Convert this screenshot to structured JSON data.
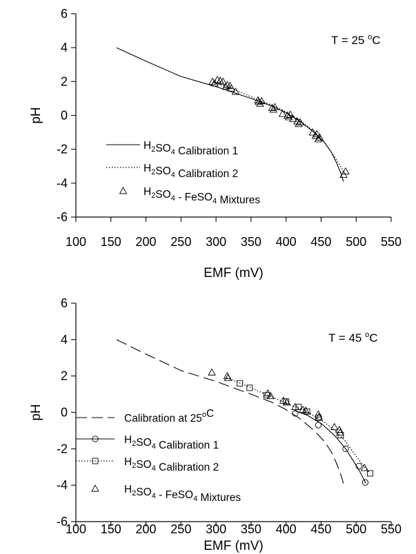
{
  "chart_data": [
    {
      "type": "line",
      "panel": "top",
      "annotation": "T = 25 °C",
      "annotation_parts": {
        "prefix": "T = 25 ",
        "sup": "o",
        "suffix": "C"
      },
      "xlabel": "EMF (mV)",
      "ylabel": "pH",
      "xlim": [
        100,
        550
      ],
      "ylim": [
        -6,
        6
      ],
      "x_ticks": [
        "100",
        "150",
        "200",
        "250",
        "300",
        "350",
        "400",
        "450",
        "500",
        "550"
      ],
      "y_ticks": [
        "-6",
        "-4",
        "-2",
        "0",
        "2",
        "4",
        "6"
      ],
      "grid": false,
      "legend_position": "center-left",
      "series": [
        {
          "name": "H2SO4 Calibration 1",
          "label_parts": [
            {
              "t": "H"
            },
            {
              "t": "2",
              "sub": true
            },
            {
              "t": "SO"
            },
            {
              "t": "4",
              "sub": true
            },
            {
              "t": " Calibration 1"
            }
          ],
          "style": "solid",
          "marker": "none",
          "x": [
            158,
            200,
            250,
            300,
            350,
            380,
            400,
            420,
            440,
            455,
            465,
            472,
            478,
            482
          ],
          "y": [
            4.0,
            3.2,
            2.3,
            1.7,
            1.0,
            0.55,
            0.15,
            -0.35,
            -1.0,
            -1.6,
            -2.2,
            -2.8,
            -3.4,
            -3.9
          ]
        },
        {
          "name": "H2SO4 Calibration 2",
          "label_parts": [
            {
              "t": "H"
            },
            {
              "t": "2",
              "sub": true
            },
            {
              "t": "SO"
            },
            {
              "t": "4",
              "sub": true
            },
            {
              "t": " Calibration 2"
            }
          ],
          "style": "dotted",
          "marker": "none",
          "x": [
            295,
            320,
            350,
            380,
            400,
            420,
            440,
            455,
            470,
            482
          ],
          "y": [
            1.95,
            1.65,
            1.1,
            0.6,
            0.2,
            -0.3,
            -0.95,
            -1.6,
            -2.5,
            -3.3
          ]
        },
        {
          "name": "H2SO4 - FeSO4 Mixtures",
          "label_parts": [
            {
              "t": "H"
            },
            {
              "t": "2",
              "sub": true
            },
            {
              "t": "SO"
            },
            {
              "t": "4",
              "sub": true
            },
            {
              "t": " - FeSO"
            },
            {
              "t": "4",
              "sub": true
            },
            {
              "t": " Mixtures"
            }
          ],
          "style": "none",
          "marker": "triangle",
          "x": [
            295,
            298,
            302,
            306,
            310,
            314,
            316,
            320,
            322,
            328,
            360,
            361,
            363,
            365,
            380,
            382,
            384,
            395,
            402,
            404,
            406,
            410,
            416,
            418,
            420,
            438,
            442,
            444,
            446,
            448,
            482,
            485
          ],
          "y": [
            2.0,
            1.9,
            2.1,
            2.05,
            2.0,
            1.7,
            1.8,
            1.75,
            1.6,
            1.4,
            0.9,
            0.8,
            0.7,
            0.85,
            0.45,
            0.35,
            0.5,
            0.1,
            0.0,
            -0.1,
            0.05,
            -0.2,
            -0.35,
            -0.5,
            -0.4,
            -1.0,
            -1.2,
            -1.1,
            -1.4,
            -1.3,
            -3.5,
            -3.3
          ]
        }
      ]
    },
    {
      "type": "line",
      "panel": "bottom",
      "annotation": "T = 45 °C",
      "annotation_parts": {
        "prefix": "T = 45 ",
        "sup": "o",
        "suffix": "C"
      },
      "xlabel": "EMF (mV)",
      "ylabel": "pH",
      "xlim": [
        100,
        550
      ],
      "ylim": [
        -6,
        6
      ],
      "x_ticks": [
        "100",
        "150",
        "200",
        "250",
        "300",
        "350",
        "400",
        "450",
        "500",
        "550"
      ],
      "y_ticks": [
        "-6",
        "-4",
        "-2",
        "0",
        "2",
        "4",
        "6"
      ],
      "grid": false,
      "legend_position": "bottom-left",
      "series": [
        {
          "name": "Calibration at 25°C",
          "label_parts": [
            {
              "t": "Calibration at 25"
            },
            {
              "t": "o",
              "sup": true
            },
            {
              "t": "C"
            }
          ],
          "style": "dashed",
          "marker": "none",
          "x": [
            158,
            200,
            250,
            300,
            350,
            380,
            400,
            420,
            440,
            455,
            465,
            472,
            478,
            482
          ],
          "y": [
            4.0,
            3.2,
            2.3,
            1.7,
            1.0,
            0.55,
            0.15,
            -0.35,
            -1.0,
            -1.6,
            -2.2,
            -2.8,
            -3.4,
            -3.9
          ]
        },
        {
          "name": "H2SO4 Calibration 1",
          "label_parts": [
            {
              "t": "H"
            },
            {
              "t": "2",
              "sub": true
            },
            {
              "t": "SO"
            },
            {
              "t": "4",
              "sub": true
            },
            {
              "t": " Calibration 1"
            }
          ],
          "style": "solid",
          "marker": "circle",
          "line_x": [
            412,
            430,
            450,
            470,
            485,
            495,
            503,
            510,
            514
          ],
          "line_y": [
            0.1,
            -0.15,
            -0.6,
            -1.3,
            -2.0,
            -2.6,
            -3.1,
            -3.6,
            -3.9
          ],
          "x": [
            413,
            446,
            485,
            504,
            513
          ],
          "y": [
            -0.05,
            -0.7,
            -2.0,
            -2.95,
            -3.85
          ]
        },
        {
          "name": "H2SO4 Calibration 2",
          "label_parts": [
            {
              "t": "H"
            },
            {
              "t": "2",
              "sub": true
            },
            {
              "t": "SO"
            },
            {
              "t": "4",
              "sub": true
            },
            {
              "t": " Calibration 2"
            }
          ],
          "style": "dotted",
          "marker": "square",
          "line_x": [
            315,
            335,
            350,
            370,
            395,
            410,
            425,
            440,
            455,
            470,
            485,
            500,
            512,
            520
          ],
          "line_y": [
            1.9,
            1.6,
            1.35,
            1.0,
            0.6,
            0.35,
            0.15,
            -0.2,
            -0.55,
            -1.0,
            -1.6,
            -2.4,
            -3.0,
            -3.35
          ],
          "x": [
            334,
            348,
            372,
            400,
            418,
            430,
            446,
            478,
            520
          ],
          "y": [
            1.6,
            1.35,
            0.95,
            0.6,
            0.3,
            0.05,
            -0.3,
            -1.25,
            -3.35
          ]
        },
        {
          "name": "H2SO4 - FeSO4 Mixtures",
          "label_parts": [
            {
              "t": "H"
            },
            {
              "t": "2",
              "sub": true
            },
            {
              "t": "SO"
            },
            {
              "t": "4",
              "sub": true
            },
            {
              "t": " - FeSO"
            },
            {
              "t": "4",
              "sub": true
            },
            {
              "t": " Mixtures"
            }
          ],
          "style": "none",
          "marker": "triangle",
          "x": [
            294,
            316,
            317,
            374,
            378,
            396,
            401,
            413,
            424,
            428,
            446,
            447,
            469,
            476,
            477,
            512
          ],
          "y": [
            2.2,
            2.0,
            1.9,
            1.05,
            0.9,
            0.65,
            0.55,
            0.3,
            0.15,
            0.1,
            -0.1,
            -0.25,
            -0.8,
            -0.95,
            -1.1,
            -3.05
          ]
        }
      ]
    }
  ]
}
